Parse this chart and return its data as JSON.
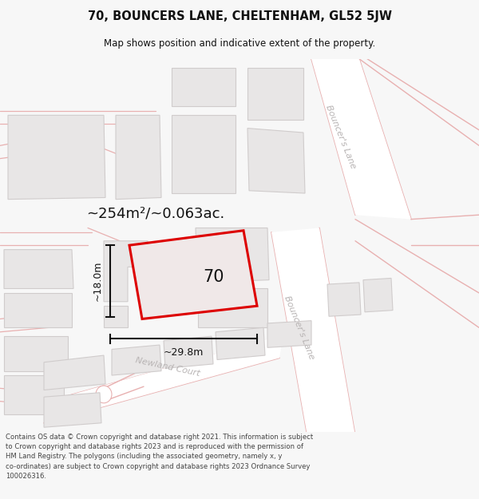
{
  "title_line1": "70, BOUNCERS LANE, CHELTENHAM, GL52 5JW",
  "title_line2": "Map shows position and indicative extent of the property.",
  "area_label": "~254m²/~0.063ac.",
  "property_number": "70",
  "dim_height": "~18.0m",
  "dim_width": "~29.8m",
  "road_label_upper": "Bouncer's Lane",
  "road_label_lower": "Bouncer's Lane",
  "road_label_bottom": "Newland Court",
  "copyright_text": "Contains OS data © Crown copyright and database right 2021. This information is subject\nto Crown copyright and database rights 2023 and is reproduced with the permission of\nHM Land Registry. The polygons (including the associated geometry, namely x, y\nco-ordinates) are subject to Crown copyright and database rights 2023 Ordnance Survey\n100026316.",
  "bg_color": "#f7f7f7",
  "map_bg": "#f2f0ee",
  "road_white": "#ffffff",
  "building_fill": "#e8e6e6",
  "building_edge": "#d0cccc",
  "road_stroke": "#e8b0b0",
  "road_stroke_dark": "#d08888",
  "property_color": "#dd0000",
  "property_fill": "#f0e8e8",
  "dim_color": "#111111",
  "text_color": "#111111",
  "road_text_color": "#b8b4b4",
  "copyright_color": "#444444"
}
